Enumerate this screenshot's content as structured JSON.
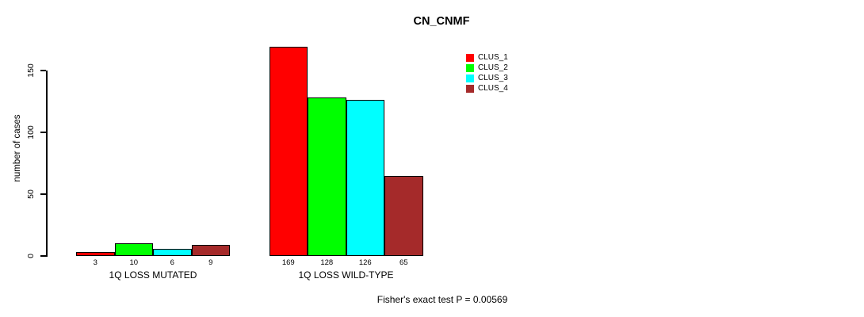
{
  "chart_data": {
    "type": "bar",
    "title": "CN_CNMF",
    "xlabel": "",
    "ylabel": "number of cases",
    "yticks": [
      0,
      50,
      100,
      150
    ],
    "ylim": [
      0,
      170
    ],
    "grid": false,
    "legend_position": "top-right",
    "categories": [
      "1Q LOSS MUTATED",
      "1Q LOSS WILD-TYPE"
    ],
    "series": [
      {
        "name": "CLUS_1",
        "color": "#FF0000",
        "values": [
          3,
          169
        ]
      },
      {
        "name": "CLUS_2",
        "color": "#00FF00",
        "values": [
          10,
          128
        ]
      },
      {
        "name": "CLUS_3",
        "color": "#00FFFF",
        "values": [
          6,
          126
        ]
      },
      {
        "name": "CLUS_4",
        "color": "#A52A2A",
        "values": [
          9,
          65
        ]
      }
    ],
    "bar_value_labels": [
      [
        "3",
        "10",
        "6",
        "9"
      ],
      [
        "169",
        "128",
        "126",
        "65"
      ]
    ],
    "annotation": "Fisher's exact test P = 0.00569"
  },
  "colors": {
    "background": "#FFFFFF",
    "axis": "#000000",
    "text": "#000000"
  }
}
